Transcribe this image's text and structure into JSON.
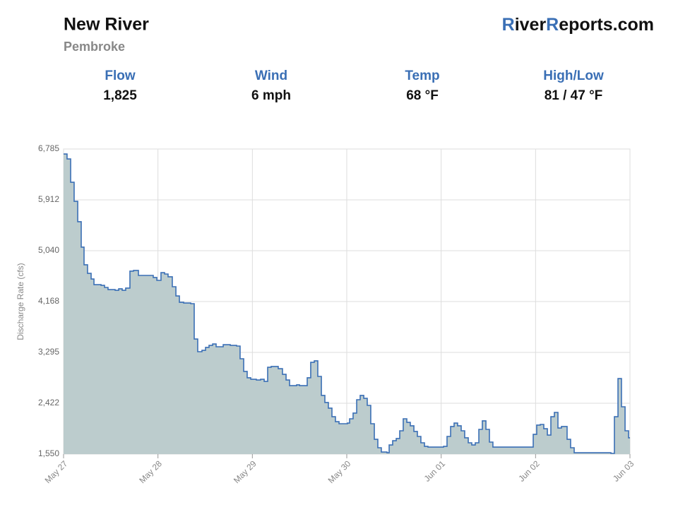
{
  "header": {
    "title": "New River",
    "subtitle": "Pembroke",
    "brand": [
      "R",
      "iver",
      "R",
      "eports.com"
    ]
  },
  "stats": [
    {
      "label": "Flow",
      "value": "1,825"
    },
    {
      "label": "Wind",
      "value": "6 mph"
    },
    {
      "label": "Temp",
      "value": "68 °F"
    },
    {
      "label": "High/Low",
      "value": "81 / 47 °F"
    }
  ],
  "chart_data": {
    "type": "step-area",
    "y_label": "Discharge Rate (cfs)",
    "color": "#3a6fb5",
    "fill": "#bccccd",
    "grid": true,
    "xlim": [
      0,
      6
    ],
    "xticks": [
      {
        "value": 0,
        "label": "May 27"
      },
      {
        "value": 1,
        "label": "May 28"
      },
      {
        "value": 2,
        "label": "May 29"
      },
      {
        "value": 3,
        "label": "May 30"
      },
      {
        "value": 4,
        "label": "Jun 01"
      },
      {
        "value": 5,
        "label": "Jun 02"
      },
      {
        "value": 6,
        "label": "Jun 03"
      }
    ],
    "ylim": [
      1550,
      6785
    ],
    "yticks": [
      {
        "value": 1550,
        "label": "1,550"
      },
      {
        "value": 2422,
        "label": "2,422"
      },
      {
        "value": 3295,
        "label": "3,295"
      },
      {
        "value": 4168,
        "label": "4,168"
      },
      {
        "value": 5040,
        "label": "5,040"
      },
      {
        "value": 5912,
        "label": "5,912"
      },
      {
        "value": 6785,
        "label": "6,785"
      }
    ],
    "x": [
      0,
      0.037,
      0.075,
      0.112,
      0.15,
      0.187,
      0.217,
      0.254,
      0.292,
      0.322,
      0.397,
      0.434,
      0.471,
      0.546,
      0.584,
      0.621,
      0.658,
      0.703,
      0.741,
      0.793,
      0.95,
      0.988,
      1.032,
      1.07,
      1.107,
      1.152,
      1.19,
      1.227,
      1.272,
      1.347,
      1.384,
      1.421,
      1.466,
      1.504,
      1.541,
      1.579,
      1.616,
      1.691,
      1.766,
      1.833,
      1.87,
      1.908,
      1.945,
      1.983,
      2.042,
      2.087,
      2.125,
      2.162,
      2.199,
      2.274,
      2.319,
      2.357,
      2.394,
      2.469,
      2.499,
      2.581,
      2.618,
      2.656,
      2.693,
      2.731,
      2.768,
      2.805,
      2.843,
      2.88,
      2.918,
      3.007,
      3.03,
      3.067,
      3.105,
      3.142,
      3.18,
      3.217,
      3.254,
      3.292,
      3.329,
      3.366,
      3.426,
      3.449,
      3.486,
      3.524,
      3.561,
      3.598,
      3.636,
      3.673,
      3.711,
      3.748,
      3.785,
      3.823,
      3.86,
      4.025,
      4.062,
      4.1,
      4.137,
      4.174,
      4.212,
      4.249,
      4.287,
      4.324,
      4.361,
      4.399,
      4.436,
      4.474,
      4.511,
      4.548,
      4.975,
      5.012,
      5.05,
      5.087,
      5.125,
      5.162,
      5.199,
      5.237,
      5.274,
      5.334,
      5.371,
      5.409,
      5.798,
      5.835,
      5.873,
      5.91,
      5.948,
      5.985
    ],
    "values": [
      6700,
      6615,
      6215,
      5888,
      5537,
      5101,
      4798,
      4652,
      4555,
      4458,
      4446,
      4410,
      4373,
      4361,
      4386,
      4361,
      4398,
      4689,
      4701,
      4616,
      4580,
      4531,
      4664,
      4640,
      4592,
      4422,
      4264,
      4155,
      4143,
      4131,
      3525,
      3307,
      3331,
      3380,
      3416,
      3440,
      3392,
      3428,
      3416,
      3404,
      3186,
      2968,
      2859,
      2834,
      2822,
      2834,
      2798,
      3040,
      3053,
      3016,
      2919,
      2822,
      2725,
      2738,
      2725,
      2859,
      3125,
      3150,
      2883,
      2556,
      2435,
      2338,
      2192,
      2107,
      2071,
      2083,
      2156,
      2253,
      2483,
      2556,
      2507,
      2386,
      2071,
      1804,
      1659,
      1586,
      1574,
      1707,
      1780,
      1817,
      1950,
      2156,
      2095,
      2035,
      1938,
      1853,
      1744,
      1683,
      1671,
      1683,
      1853,
      2023,
      2083,
      2035,
      1950,
      1829,
      1744,
      1707,
      1744,
      1974,
      2120,
      1974,
      1756,
      1671,
      1889,
      2047,
      2059,
      1986,
      1877,
      2192,
      2265,
      1998,
      2023,
      1804,
      1659,
      1574,
      1562,
      2192,
      2846,
      2362,
      1950,
      1829
    ]
  }
}
